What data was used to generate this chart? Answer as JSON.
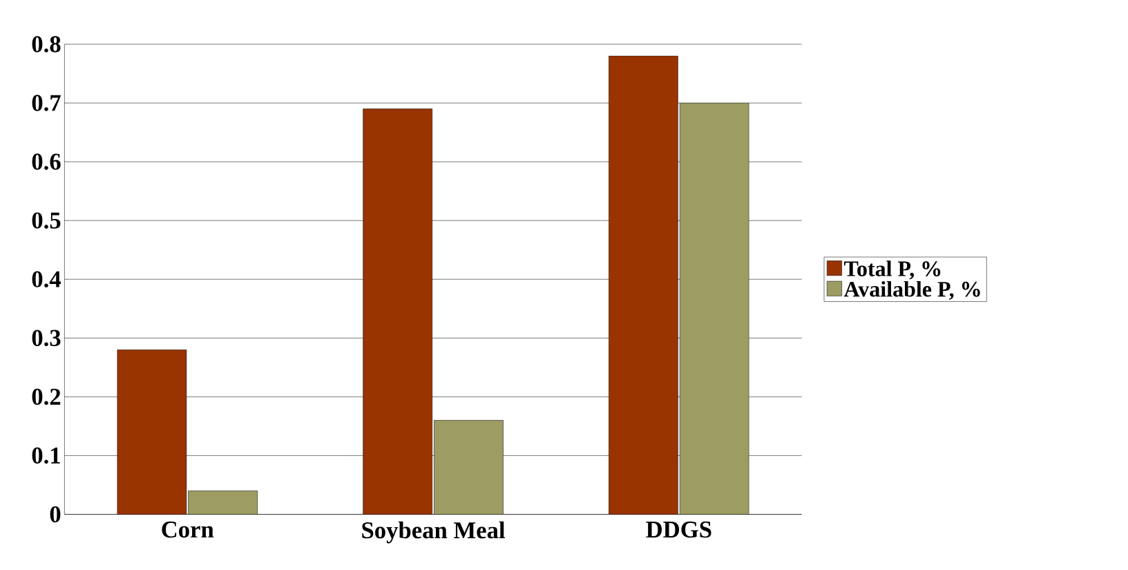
{
  "chart_data": {
    "type": "bar",
    "categories": [
      "Corn",
      "Soybean Meal",
      "DDGS"
    ],
    "series": [
      {
        "name": "Total P, %",
        "color": "#993300",
        "values": [
          0.28,
          0.69,
          0.78
        ]
      },
      {
        "name": "Available P, %",
        "color": "#9c9c63",
        "values": [
          0.04,
          0.16,
          0.7
        ]
      }
    ],
    "ylim": [
      0,
      0.8
    ],
    "yticks": [
      0,
      0.1,
      0.2,
      0.3,
      0.4,
      0.5,
      0.6,
      0.7,
      0.8
    ],
    "grid": "y",
    "legend": "right"
  }
}
